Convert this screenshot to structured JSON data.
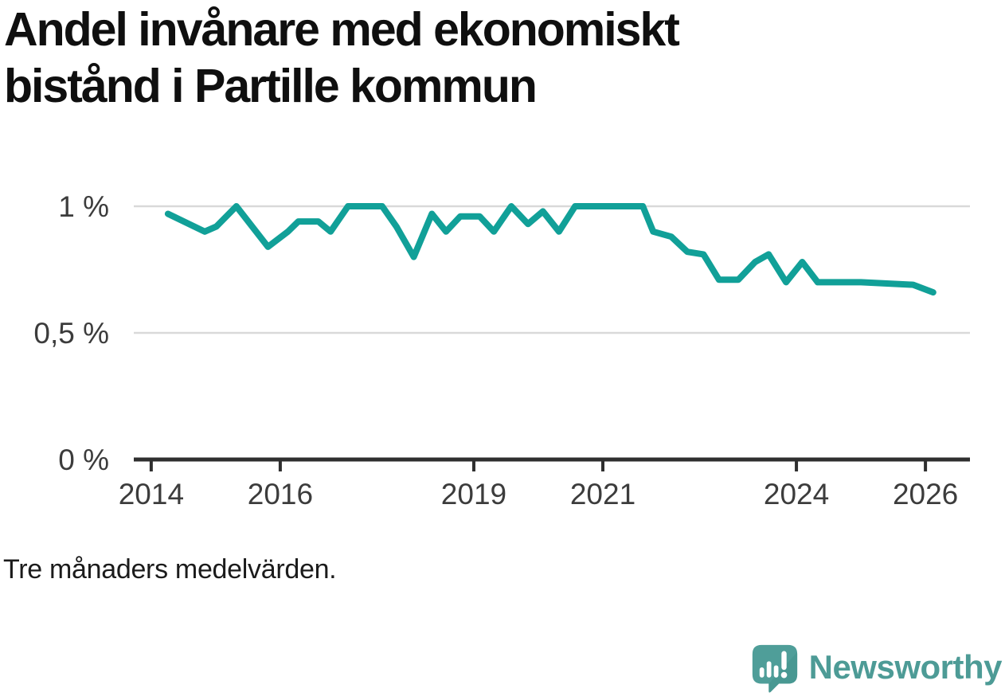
{
  "title": {
    "text": "Andel invånare med ekonomiskt\nbistånd i Partille kommun"
  },
  "footnote": {
    "text": "Tre månaders medelvärden."
  },
  "logo": {
    "text": "Newsworthy",
    "icon": "newsworthy-speech-bubble-bar-chart-icon",
    "text_color": "#4d9b96",
    "icon_color": "#4f9e99",
    "icon_shade_color": "#3d8b86"
  },
  "colors": {
    "line": "#11a098",
    "gridline": "#d9d9d9",
    "axis": "#2f2f2f",
    "tick_label": "#3c3c3c",
    "title": "#0f0f0f",
    "background": "#ffffff"
  },
  "chart_data": {
    "type": "line",
    "title": "Andel invånare med ekonomiskt bistånd i Partille kommun",
    "note": "Tre månaders medelvärden.",
    "xlabel": "",
    "ylabel": "",
    "unit": "%",
    "grid": "horizontal",
    "legend": "none",
    "xlim": [
      2013.73,
      2026.69
    ],
    "ylim": [
      0,
      1
    ],
    "xticks": [
      {
        "value": 2014,
        "label": "2014"
      },
      {
        "value": 2016,
        "label": "2016"
      },
      {
        "value": 2019,
        "label": "2019"
      },
      {
        "value": 2021,
        "label": "2021"
      },
      {
        "value": 2024,
        "label": "2024"
      },
      {
        "value": 2026,
        "label": "2026"
      }
    ],
    "yticks": [
      {
        "value": 1,
        "label": "1 %"
      },
      {
        "value": 0.5,
        "label": "0,5 %"
      },
      {
        "value": 0,
        "label": "0 %"
      }
    ],
    "series": [
      {
        "name": "Andel invånare med ekonomiskt bistånd, Partille kommun",
        "color": "#11a098",
        "points": [
          [
            2014.26,
            0.97
          ],
          [
            2014.83,
            0.9
          ],
          [
            2015.01,
            0.92
          ],
          [
            2015.32,
            1.0
          ],
          [
            2015.81,
            0.84
          ],
          [
            2016.12,
            0.9
          ],
          [
            2016.28,
            0.94
          ],
          [
            2016.59,
            0.94
          ],
          [
            2016.78,
            0.9
          ],
          [
            2017.05,
            1.0
          ],
          [
            2017.58,
            1.0
          ],
          [
            2017.8,
            0.92
          ],
          [
            2018.07,
            0.8
          ],
          [
            2018.35,
            0.97
          ],
          [
            2018.57,
            0.9
          ],
          [
            2018.79,
            0.96
          ],
          [
            2019.09,
            0.96
          ],
          [
            2019.31,
            0.9
          ],
          [
            2019.58,
            1.0
          ],
          [
            2019.84,
            0.93
          ],
          [
            2020.07,
            0.98
          ],
          [
            2020.32,
            0.9
          ],
          [
            2020.57,
            1.0
          ],
          [
            2021.62,
            1.0
          ],
          [
            2021.78,
            0.9
          ],
          [
            2022.06,
            0.88
          ],
          [
            2022.31,
            0.82
          ],
          [
            2022.56,
            0.81
          ],
          [
            2022.8,
            0.71
          ],
          [
            2023.1,
            0.71
          ],
          [
            2023.36,
            0.78
          ],
          [
            2023.57,
            0.81
          ],
          [
            2023.84,
            0.7
          ],
          [
            2024.09,
            0.78
          ],
          [
            2024.33,
            0.7
          ],
          [
            2025.0,
            0.7
          ],
          [
            2025.81,
            0.69
          ],
          [
            2026.12,
            0.66
          ]
        ]
      }
    ]
  }
}
